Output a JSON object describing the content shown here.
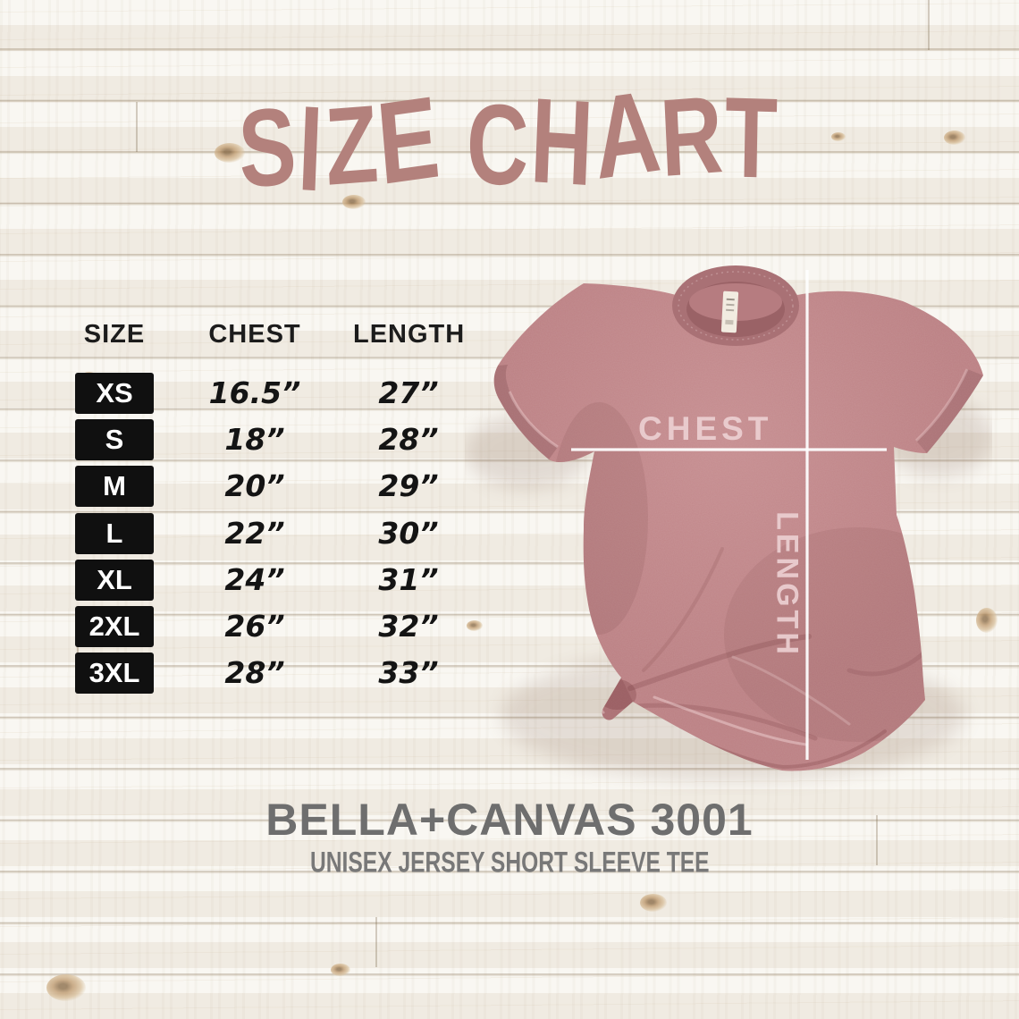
{
  "title": "SIZE CHART",
  "table": {
    "headers": [
      "SIZE",
      "CHEST",
      "LENGTH"
    ],
    "rows": [
      {
        "size": "XS",
        "chest": "16.5”",
        "length": "27”"
      },
      {
        "size": "S",
        "chest": "18”",
        "length": "28”"
      },
      {
        "size": "M",
        "chest": "20”",
        "length": "29”"
      },
      {
        "size": "L",
        "chest": "22”",
        "length": "30”"
      },
      {
        "size": "XL",
        "chest": "24”",
        "length": "31”"
      },
      {
        "size": "2XL",
        "chest": "26”",
        "length": "32”"
      },
      {
        "size": "3XL",
        "chest": "28”",
        "length": "33”"
      }
    ]
  },
  "shirt": {
    "chest_label": "CHEST",
    "length_label": "LENGTH"
  },
  "footer": {
    "brand": "BELLA+CANVAS 3001",
    "subtitle": "UNISEX JERSEY SHORT SLEEVE TEE"
  },
  "colors": {
    "title": "#b3817c",
    "shirt": "#bc8184",
    "collar": "#a97175",
    "collar-inside": "#9a6266",
    "shirt-label": "#ecd0d2",
    "line": "#ffffff",
    "box-bg": "#101010",
    "box-text": "#ffffff",
    "table-text": "#1c1c1c",
    "footer-text": "#6e6e6e"
  },
  "chart_data": {
    "type": "table",
    "title": "SIZE CHART",
    "columns": [
      "SIZE",
      "CHEST",
      "LENGTH"
    ],
    "units": "inches",
    "rows": [
      [
        "XS",
        16.5,
        27
      ],
      [
        "S",
        18,
        28
      ],
      [
        "M",
        20,
        29
      ],
      [
        "L",
        22,
        30
      ],
      [
        "XL",
        24,
        31
      ],
      [
        "2XL",
        26,
        32
      ],
      [
        "3XL",
        28,
        33
      ]
    ],
    "product": "BELLA+CANVAS 3001 UNISEX JERSEY SHORT SLEEVE TEE"
  }
}
